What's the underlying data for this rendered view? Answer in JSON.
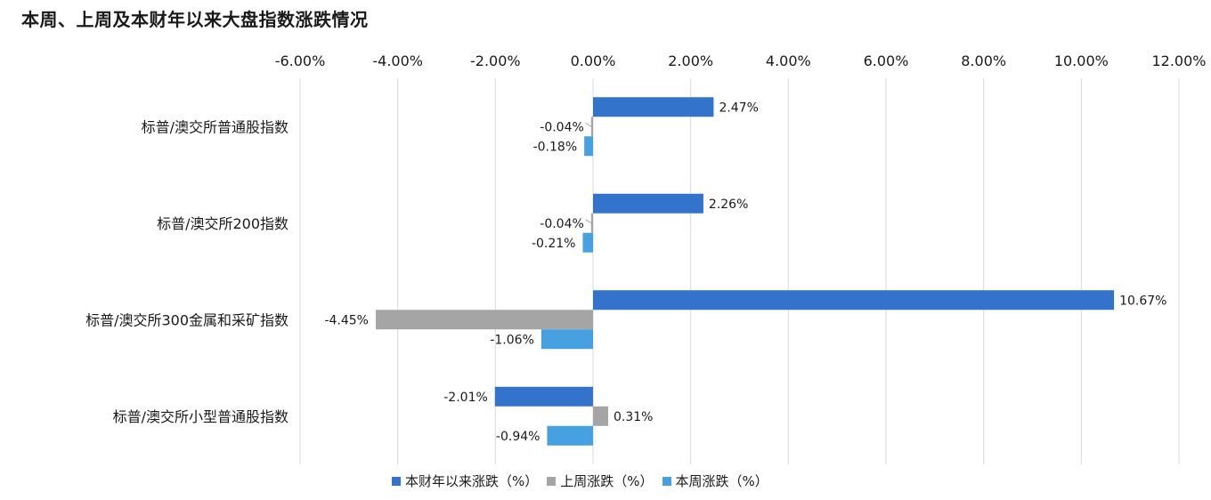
{
  "chart_data": {
    "type": "bar",
    "orientation": "horizontal",
    "title": "本周、上周及本财年以来大盘指数涨跌情况",
    "categories": [
      "标普/澳交所普通股指数",
      "标普/澳交所200指数",
      "标普/澳交所300金属和采矿指数",
      "标普/澳交所小型普通股指数"
    ],
    "series": [
      {
        "name": "本财年以来涨跌（%）",
        "color": "#3473CB",
        "values": [
          2.47,
          2.26,
          10.67,
          -2.01
        ],
        "labels": [
          "2.47%",
          "2.26%",
          "10.67%",
          "-2.01%"
        ]
      },
      {
        "name": "上周涨跌（%）",
        "color": "#A5A5A5",
        "values": [
          -0.04,
          -0.04,
          -4.45,
          0.31
        ],
        "labels": [
          "-0.04%",
          "-0.04%",
          "-4.45%",
          "0.31%"
        ]
      },
      {
        "name": "本周涨跌（%）",
        "color": "#47A1E0",
        "values": [
          -0.18,
          -0.21,
          -1.06,
          -0.94
        ],
        "labels": [
          "-0.18%",
          "-0.21%",
          "-1.06%",
          "-0.94%"
        ]
      }
    ],
    "xlim": [
      -6,
      12
    ],
    "ticks": [
      -6,
      -4,
      -2,
      0,
      2,
      4,
      6,
      8,
      10,
      12
    ],
    "tick_labels": [
      "-6.00%",
      "-4.00%",
      "-2.00%",
      "0.00%",
      "2.00%",
      "4.00%",
      "6.00%",
      "8.00%",
      "10.00%",
      "12.00%"
    ],
    "xaxis_position": "top",
    "grid": true,
    "legend_position": "bottom"
  }
}
